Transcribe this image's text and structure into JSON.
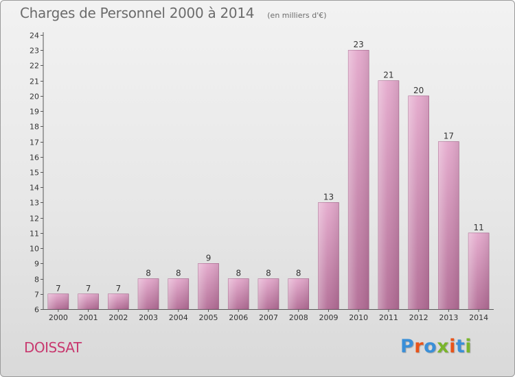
{
  "header": {
    "title": "Charges de Personnel 2000 à 2014",
    "subtitle": "(en milliers d'€)"
  },
  "commune": "DOISSAT",
  "logo": {
    "text": "Proxiti",
    "colors": [
      "#3a8fd8",
      "#e8541a",
      "#3a8fd8",
      "#7ab52c",
      "#e8541a",
      "#3a8fd8",
      "#7ab52c"
    ]
  },
  "colors": {
    "bar_top": "#e4a9cc",
    "bar_bottom": "#b26c95",
    "bar_edge": "#a05a84",
    "commune_text": "#c8396f"
  },
  "chart_data": {
    "type": "bar",
    "title": "Charges de Personnel 2000 à 2014",
    "subtitle": "(en milliers d'€)",
    "categories": [
      "2000",
      "2001",
      "2002",
      "2003",
      "2004",
      "2005",
      "2006",
      "2007",
      "2008",
      "2009",
      "2010",
      "2011",
      "2012",
      "2013",
      "2014"
    ],
    "values": [
      7,
      7,
      7,
      8,
      8,
      9,
      8,
      8,
      8,
      13,
      23,
      21,
      20,
      17,
      11
    ],
    "ylim": [
      6,
      24
    ],
    "yticks": [
      6,
      7,
      8,
      9,
      10,
      11,
      12,
      13,
      14,
      15,
      16,
      17,
      18,
      19,
      20,
      21,
      22,
      23,
      24
    ],
    "grid": false,
    "data_labels": true
  }
}
